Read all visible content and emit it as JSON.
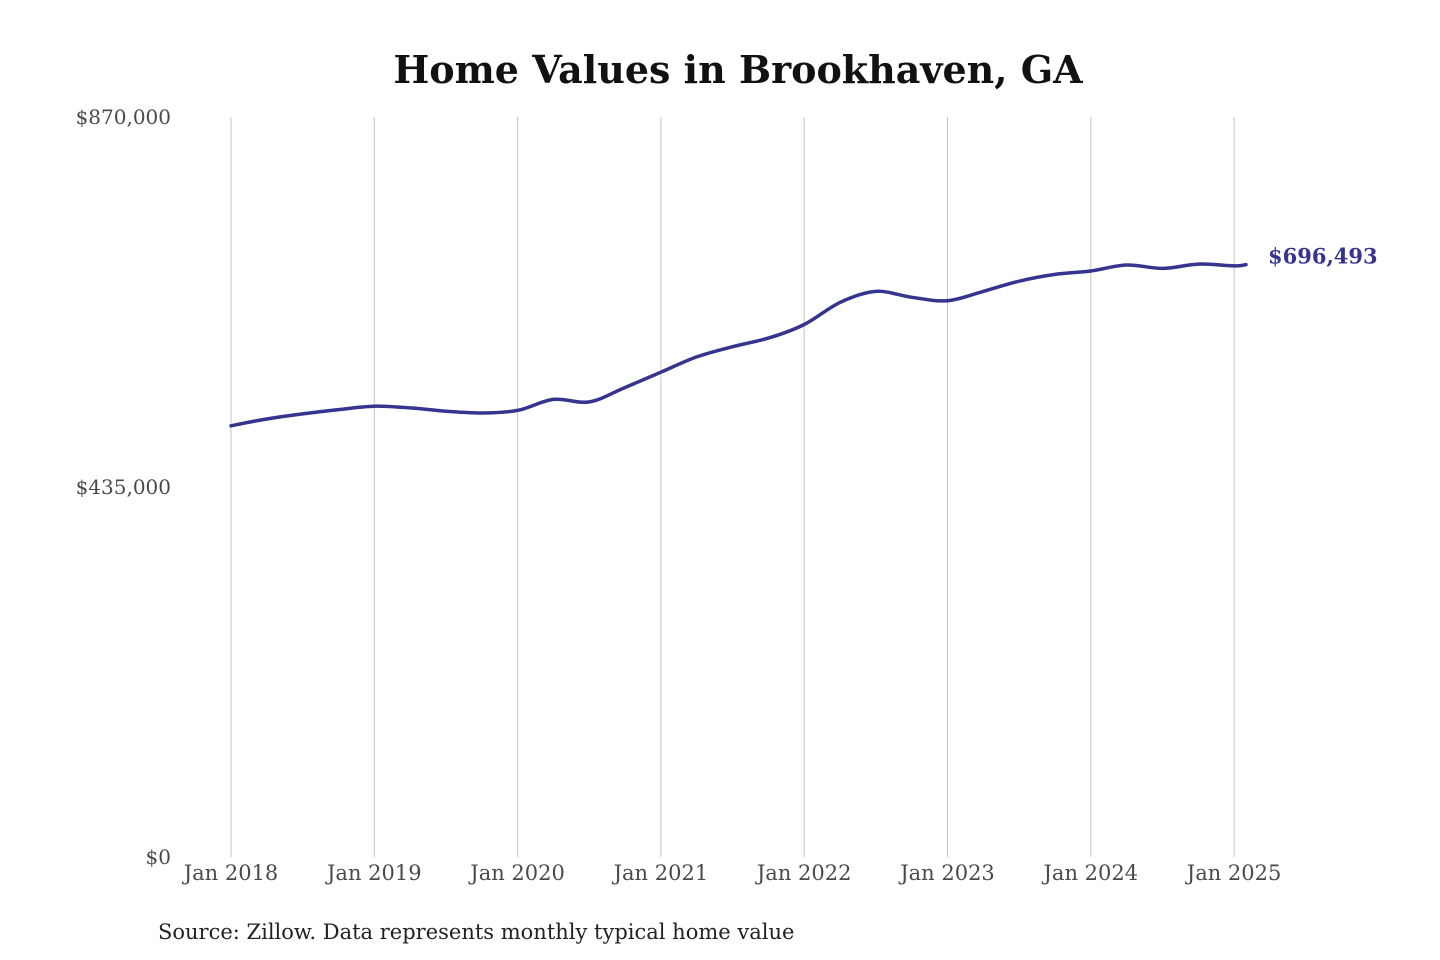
{
  "chart_data": {
    "type": "line",
    "title": "Home Values in Brookhaven, GA",
    "source": "Source: Zillow. Data represents monthly typical home value",
    "ylim": [
      0,
      870000
    ],
    "yticks": [
      {
        "value": 0,
        "label": "$0"
      },
      {
        "value": 435000,
        "label": "$435,000"
      },
      {
        "value": 870000,
        "label": "$870,000"
      }
    ],
    "xticks": [
      {
        "value": 2018,
        "label": "Jan 2018"
      },
      {
        "value": 2019,
        "label": "Jan 2019"
      },
      {
        "value": 2020,
        "label": "Jan 2020"
      },
      {
        "value": 2021,
        "label": "Jan 2021"
      },
      {
        "value": 2022,
        "label": "Jan 2022"
      },
      {
        "value": 2023,
        "label": "Jan 2023"
      },
      {
        "value": 2024,
        "label": "Jan 2024"
      },
      {
        "value": 2025,
        "label": "Jan 2025"
      }
    ],
    "grid": {
      "vertical": true,
      "horizontal": false
    },
    "line_color": "#35348f",
    "grid_color": "#c4c4c4",
    "end_label": "$696,493",
    "series": [
      {
        "x": [
          "2018-01",
          "2018-04",
          "2018-07",
          "2018-10",
          "2019-01",
          "2019-04",
          "2019-07",
          "2019-10",
          "2020-01",
          "2020-04",
          "2020-07",
          "2020-10",
          "2021-01",
          "2021-04",
          "2021-07",
          "2021-10",
          "2022-01",
          "2022-04",
          "2022-07",
          "2022-10",
          "2023-01",
          "2023-04",
          "2023-07",
          "2023-10",
          "2024-01",
          "2024-04",
          "2024-07",
          "2024-10",
          "2025-01",
          "2025-02"
        ],
        "y": [
          507000,
          515000,
          521000,
          526000,
          530000,
          528000,
          524000,
          522000,
          525000,
          538000,
          535000,
          552000,
          570000,
          588000,
          600000,
          610000,
          626000,
          652000,
          665000,
          658000,
          654000,
          665000,
          677000,
          685000,
          689000,
          696000,
          692000,
          697000,
          695000,
          696493
        ]
      }
    ]
  }
}
